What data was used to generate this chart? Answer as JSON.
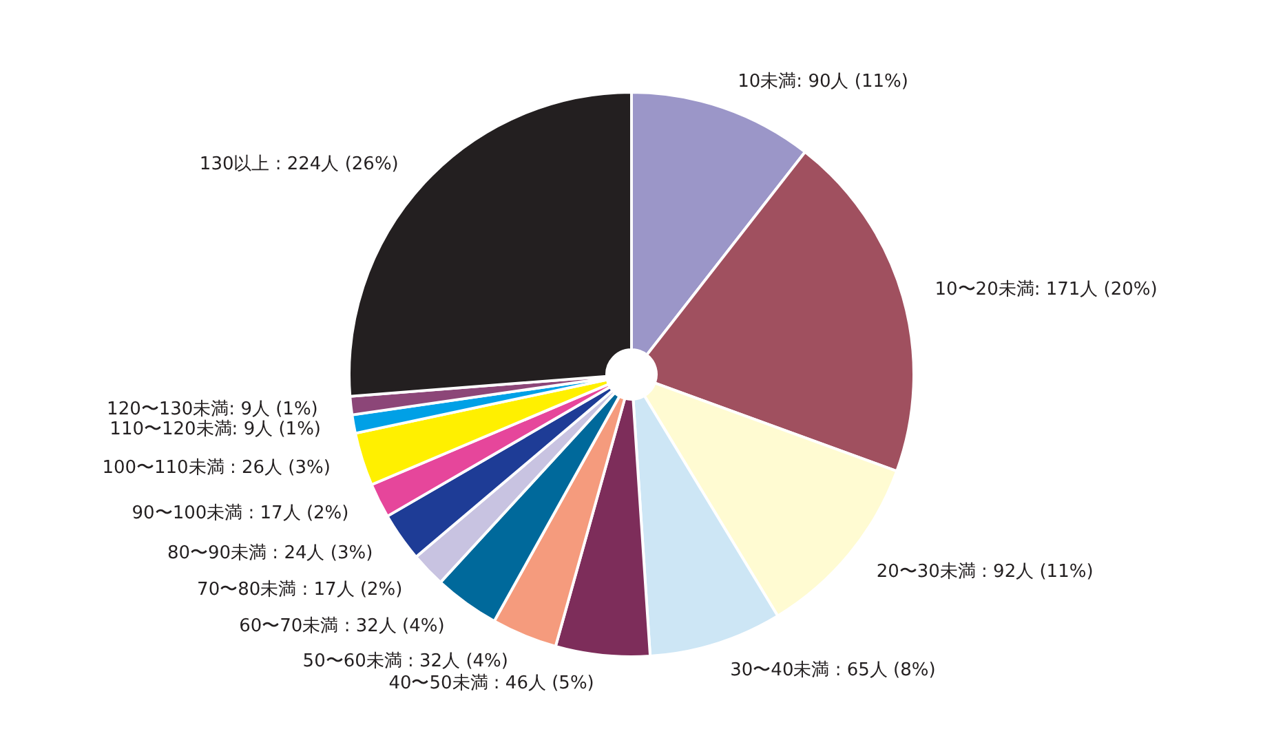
{
  "chart_data": {
    "type": "pie",
    "categories": [
      "10未満: 90人 (11%)",
      "10〜20未満: 171人 (20%)",
      "20〜30未満 : 92人 (11%)",
      "30〜40未満 : 65人 (8%)",
      "40〜50未満 : 46人 (5%)",
      "50〜60未満 : 32人 (4%)",
      "60〜70未満 : 32人 (4%)",
      "70〜80未満 : 17人 (2%)",
      "80〜90未満 : 24人 (3%)",
      "90〜100未満 : 17人 (2%)",
      "100〜110未満 : 26人 (3%)",
      "110〜120未満: 9人 (1%)",
      "120〜130未満: 9人 (1%)",
      "130以上 : 224人 (26%)"
    ],
    "values": [
      90,
      171,
      92,
      65,
      46,
      32,
      32,
      17,
      24,
      17,
      26,
      9,
      9,
      224
    ],
    "colors": [
      "#9b96c8",
      "#a0505f",
      "#fffbd2",
      "#cde6f5",
      "#7d2d5a",
      "#f59b7d",
      "#00699b",
      "#c8c3e1",
      "#1e3c96",
      "#e6469b",
      "#fff000",
      "#00a0e6",
      "#8c4678",
      "#231f20"
    ]
  }
}
